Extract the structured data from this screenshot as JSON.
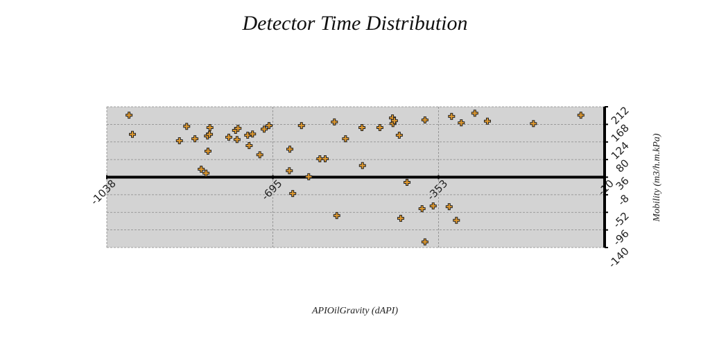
{
  "chart_data": {
    "type": "scatter",
    "title": "Detector Time Distribution",
    "x_label": "APIOilGravity (dAPI)",
    "y_label": "Mobility (m3/h.m.kPa)",
    "xlim": [
      -1038,
      -10
    ],
    "xticks": [
      -1038,
      -695,
      -353,
      -10
    ],
    "ylim": [
      -140,
      212
    ],
    "yticks": [
      212,
      168,
      124,
      80,
      36,
      -8,
      -52,
      -96,
      -140
    ],
    "grid": true,
    "series": [
      {
        "color": "#e09a30",
        "x": [
          -992,
          -985,
          -888,
          -873,
          -856,
          -843,
          -833,
          -830,
          -826,
          -829,
          -825,
          -786,
          -772,
          -767,
          -769,
          -747,
          -744,
          -737,
          -722,
          -713,
          -703,
          -660,
          -661,
          -654,
          -636,
          -621,
          -598,
          -587,
          -568,
          -563,
          -545,
          -511,
          -510,
          -474,
          -448,
          -447,
          -444,
          -434,
          -418,
          -431,
          -387,
          -381,
          -381,
          -364,
          -331,
          -326,
          -316,
          -306,
          -278,
          -252,
          -157,
          -59
        ],
        "values": [
          191,
          143,
          127,
          163,
          132,
          56,
          46,
          139,
          143,
          101,
          160,
          136,
          153,
          158,
          130,
          141,
          115,
          144,
          92,
          156,
          165,
          106,
          52,
          -5,
          165,
          37,
          82,
          82,
          174,
          -60,
          132,
          160,
          65,
          160,
          184,
          170,
          177,
          141,
          23,
          -67,
          -43,
          179,
          -126,
          -36,
          -38,
          188,
          -72,
          172,
          196,
          176,
          170,
          191
        ]
      }
    ]
  }
}
